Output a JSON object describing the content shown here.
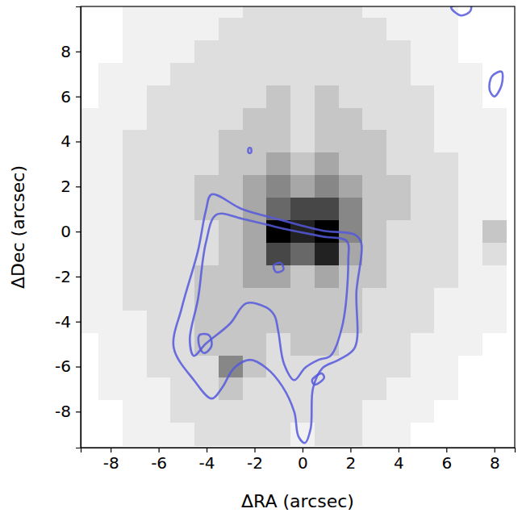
{
  "chart_data": {
    "type": "image",
    "xlabel": "ΔRA (arcsec)",
    "ylabel": "ΔDec (arcsec)",
    "xlim": [
      -9.25,
      8.85
    ],
    "ylim": [
      -9.6,
      10
    ],
    "xticks": [
      -8,
      -6,
      -4,
      -2,
      0,
      2,
      4,
      6,
      8
    ],
    "yticks": [
      -8,
      -6,
      -4,
      -2,
      0,
      2,
      4,
      6,
      8
    ],
    "image": {
      "x": [
        -9,
        -8,
        -7,
        -6,
        -5,
        -4,
        -3,
        -2,
        -1,
        0,
        1,
        2,
        3,
        4,
        5,
        6,
        7,
        8
      ],
      "y": [
        10,
        9,
        8,
        7,
        6,
        5,
        4,
        3,
        2,
        1,
        0,
        -1,
        -2,
        -3,
        -4,
        -5,
        -6,
        -7,
        -8,
        -9
      ],
      "clim": [
        0,
        9
      ],
      "values": [
        [
          0,
          0,
          1,
          1,
          1,
          1,
          1,
          2,
          2,
          2,
          2,
          2,
          1,
          1,
          1,
          1,
          0,
          0
        ],
        [
          0,
          0,
          1,
          1,
          1,
          1,
          2,
          2,
          2,
          2,
          2,
          2,
          2,
          1,
          1,
          1,
          0,
          0
        ],
        [
          0,
          0,
          1,
          1,
          1,
          2,
          2,
          2,
          2,
          2,
          2,
          2,
          2,
          2,
          1,
          1,
          0,
          0
        ],
        [
          0,
          1,
          1,
          1,
          2,
          2,
          2,
          2,
          2,
          2,
          2,
          2,
          2,
          2,
          1,
          1,
          1,
          0
        ],
        [
          0,
          1,
          1,
          2,
          2,
          2,
          2,
          2,
          3,
          2,
          3,
          2,
          2,
          2,
          2,
          1,
          1,
          0
        ],
        [
          1,
          1,
          1,
          2,
          2,
          2,
          2,
          3,
          3,
          2,
          3,
          3,
          2,
          2,
          2,
          1,
          1,
          1
        ],
        [
          1,
          1,
          2,
          2,
          2,
          2,
          3,
          3,
          3,
          2,
          3,
          3,
          3,
          2,
          2,
          1,
          1,
          1
        ],
        [
          1,
          1,
          2,
          2,
          2,
          2,
          3,
          3,
          4,
          3,
          4,
          3,
          3,
          2,
          2,
          2,
          1,
          1
        ],
        [
          1,
          1,
          2,
          2,
          2,
          3,
          3,
          4,
          5,
          4,
          5,
          4,
          3,
          3,
          2,
          2,
          1,
          1
        ],
        [
          1,
          1,
          2,
          2,
          2,
          3,
          3,
          4,
          6,
          7,
          7,
          5,
          3,
          3,
          2,
          2,
          1,
          1
        ],
        [
          1,
          1,
          2,
          2,
          2,
          2,
          3,
          4,
          9,
          8,
          9,
          5,
          3,
          2,
          2,
          2,
          1,
          3
        ],
        [
          1,
          1,
          2,
          2,
          2,
          2,
          3,
          4,
          7,
          6,
          8,
          4,
          3,
          2,
          2,
          2,
          1,
          2
        ],
        [
          1,
          1,
          2,
          2,
          2,
          3,
          3,
          4,
          4,
          3,
          4,
          3,
          3,
          2,
          2,
          2,
          1,
          1
        ],
        [
          1,
          1,
          2,
          2,
          2,
          3,
          3,
          3,
          3,
          3,
          3,
          3,
          2,
          2,
          2,
          1,
          1,
          1
        ],
        [
          1,
          1,
          1,
          2,
          2,
          3,
          3,
          3,
          3,
          3,
          3,
          3,
          2,
          2,
          2,
          1,
          1,
          1
        ],
        [
          0,
          1,
          1,
          2,
          2,
          3,
          3,
          3,
          2,
          3,
          3,
          2,
          2,
          2,
          1,
          1,
          1,
          0
        ],
        [
          0,
          1,
          1,
          2,
          2,
          2,
          5,
          3,
          2,
          2,
          2,
          2,
          2,
          2,
          1,
          1,
          0,
          0
        ],
        [
          0,
          1,
          1,
          1,
          2,
          2,
          3,
          2,
          2,
          2,
          2,
          2,
          2,
          1,
          1,
          1,
          0,
          0
        ],
        [
          0,
          0,
          1,
          1,
          2,
          2,
          2,
          2,
          2,
          2,
          2,
          2,
          1,
          1,
          1,
          0,
          0,
          0
        ],
        [
          0,
          0,
          1,
          1,
          1,
          2,
          2,
          2,
          2,
          1,
          2,
          2,
          1,
          1,
          0,
          0,
          0,
          0
        ]
      ]
    },
    "contour_color": "#5558dc",
    "contours": [
      {
        "x": [
          -3.79,
          -2.52,
          -0.84,
          0.84,
          2.18,
          2.45,
          2.25,
          2.18,
          1.51,
          0.84,
          0.44,
          0.34,
          0.1,
          -0.17,
          -0.34,
          -0.84,
          -1.51,
          -2.18,
          -2.85,
          -3.36,
          -3.79,
          -4.53,
          -5.37,
          -5.03,
          -4.36,
          -4.03
        ],
        "y": [
          1.65,
          1.0,
          0.5,
          0.04,
          -0.14,
          -0.5,
          -2.65,
          -5.16,
          -5.7,
          -6.06,
          -6.95,
          -8.75,
          -9.39,
          -9.1,
          -8.03,
          -6.88,
          -6.06,
          -5.7,
          -6.06,
          -6.95,
          -7.42,
          -6.6,
          -5.16,
          -3.37,
          -0.86,
          0.93
        ]
      },
      {
        "x": [
          -3.59,
          -2.52,
          -0.84,
          0.84,
          1.85,
          1.91,
          1.68,
          1.17,
          0.67,
          0.1,
          -0.34,
          -0.77,
          -1.01,
          -1.17,
          -1.51,
          -2.35,
          -3.02,
          -4.03,
          -4.53,
          -4.7,
          -4.36,
          -4.03
        ],
        "y": [
          0.75,
          0.57,
          0.14,
          -0.22,
          -0.43,
          -1.22,
          -4.09,
          -5.52,
          -5.7,
          -6.06,
          -6.6,
          -5.88,
          -4.44,
          -3.73,
          -3.37,
          -3.19,
          -4.09,
          -4.98,
          -5.52,
          -4.8,
          -3.01,
          -0.5
        ]
      },
      {
        "x": [
          -1.2,
          -0.9,
          -0.8,
          -1.1
        ],
        "y": [
          -1.5,
          -1.4,
          -1.7,
          -1.8
        ]
      },
      {
        "x": [
          -4.3,
          -3.9,
          -3.8,
          -4.1,
          -4.3
        ],
        "y": [
          -4.6,
          -4.6,
          -5.1,
          -5.4,
          -5.1
        ]
      },
      {
        "x": [
          0.4,
          0.8,
          0.9,
          0.5
        ],
        "y": [
          -6.6,
          -6.3,
          -6.5,
          -6.8
        ]
      },
      {
        "x": [
          7.8,
          7.9,
          8.3,
          8.3,
          8.0
        ],
        "y": [
          6.3,
          6.9,
          7.1,
          6.5,
          6.0
        ]
      },
      {
        "x": [
          6.2,
          6.6,
          7.0,
          7.0
        ],
        "y": [
          9.96,
          9.6,
          9.8,
          10.1
        ]
      },
      {
        "x": [
          -2.25,
          -2.15,
          -2.15,
          -2.25
        ],
        "y": [
          3.5,
          3.5,
          3.7,
          3.7
        ]
      }
    ]
  }
}
